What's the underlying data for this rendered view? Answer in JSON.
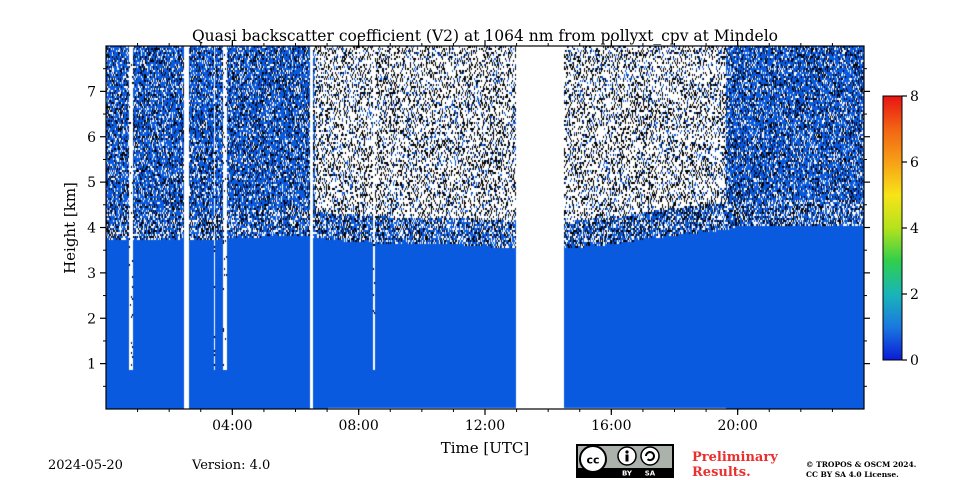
{
  "chart_data": {
    "type": "heatmap",
    "title": "Quasi backscatter coefficient (V2) at 1064 nm from pollyxt_cpv at Mindelo",
    "xlabel": "Time [UTC]",
    "ylabel": "Height [km]",
    "xlim_hours": [
      0,
      24
    ],
    "ylim_km": [
      0,
      8
    ],
    "x_ticks": [
      {
        "hour": 4,
        "label": "04:00"
      },
      {
        "hour": 8,
        "label": "08:00"
      },
      {
        "hour": 12,
        "label": "12:00"
      },
      {
        "hour": 16,
        "label": "16:00"
      },
      {
        "hour": 20,
        "label": "20:00"
      }
    ],
    "y_ticks": [
      {
        "km": 1,
        "label": "1"
      },
      {
        "km": 2,
        "label": "2"
      },
      {
        "km": 3,
        "label": "3"
      },
      {
        "km": 4,
        "label": "4"
      },
      {
        "km": 5,
        "label": "5"
      },
      {
        "km": 6,
        "label": "6"
      },
      {
        "km": 7,
        "label": "7"
      }
    ],
    "colorbar": {
      "min": 0,
      "max": 8,
      "ticks": [
        {
          "value": 0,
          "label": "0"
        },
        {
          "value": 2,
          "label": "2"
        },
        {
          "value": 4,
          "label": "4"
        },
        {
          "value": 6,
          "label": "6"
        },
        {
          "value": 8,
          "label": "8"
        }
      ],
      "colors": [
        "#0a1cd6",
        "#1a78e0",
        "#19b5b8",
        "#2fcf4c",
        "#b5e21c",
        "#f7e418",
        "#f7a016",
        "#f26414",
        "#e81414"
      ]
    },
    "series": [
      {
        "name": "boundary_layer_top_km",
        "hours": [
          0,
          2.5,
          3,
          6,
          7,
          9,
          11,
          12.9,
          14.5,
          16,
          18,
          19.5,
          20,
          24
        ],
        "values": [
          3.9,
          3.9,
          3.9,
          4.0,
          3.9,
          3.8,
          3.8,
          3.7,
          3.7,
          3.8,
          4.0,
          4.1,
          4.2,
          4.2
        ]
      },
      {
        "name": "no_data_gaps",
        "intervals_hours": [
          [
            2.45,
            2.6
          ],
          [
            6.45,
            6.55
          ],
          [
            12.95,
            14.5
          ]
        ]
      },
      {
        "name": "cloud_free_columns",
        "intervals_hours": [
          [
            0.72,
            0.85
          ],
          [
            3.4,
            3.45
          ],
          [
            3.7,
            3.8
          ],
          [
            8.45,
            8.5
          ],
          [
            11.6,
            11.62
          ]
        ]
      }
    ],
    "background_color": "#0a5ae0"
  },
  "footer": {
    "date": "2024-05-20",
    "version": "Version: 4.0",
    "preliminary_line1": "Preliminary",
    "preliminary_line2": "Results.",
    "copyright_line1": "© TROPOS & OSCM 2024.",
    "copyright_line2": "CC BY SA 4.0 License.",
    "license_badge_cc": "cc",
    "license_badge_by": "BY",
    "license_badge_sa": "SA"
  }
}
